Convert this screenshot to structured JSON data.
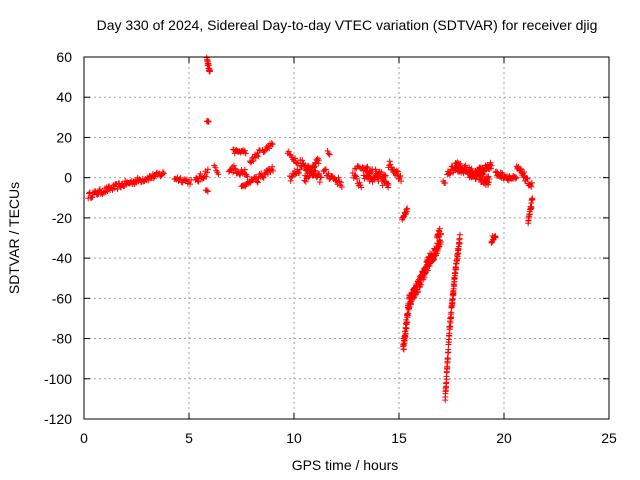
{
  "chart_data": {
    "type": "scatter",
    "title": "Day 330 of 2024, Sidereal Day-to-day VTEC variation (SDTVAR) for receiver djig",
    "xlabel": "GPS time / hours",
    "ylabel": "SDTVAR / TECUs",
    "xlim": [
      0,
      25
    ],
    "ylim": [
      -120,
      60
    ],
    "xticks": [
      0,
      5,
      10,
      15,
      20,
      25
    ],
    "yticks": [
      -120,
      -100,
      -80,
      -60,
      -40,
      -20,
      0,
      20,
      40,
      60
    ],
    "grid": true,
    "legend": "none",
    "marker": "+",
    "colors": {
      "series": "#ff0000",
      "grid": "#a0a0a0",
      "axis": "#000000"
    },
    "series": [
      {
        "name": "SDTVAR",
        "segments": [
          {
            "t0": 0.2,
            "t1": 2.0,
            "v0": -9,
            "v1": -3,
            "step": 0.04,
            "jitter": 1.5,
            "trace": "main"
          },
          {
            "t0": 2.0,
            "t1": 3.8,
            "v0": -3,
            "v1": 2,
            "step": 0.04,
            "jitter": 1.5,
            "trace": "main"
          },
          {
            "t0": 4.3,
            "t1": 5.1,
            "v0": 0,
            "v1": -2,
            "step": 0.05,
            "jitter": 1.5,
            "trace": "main"
          },
          {
            "t0": 5.3,
            "t1": 5.9,
            "v0": -2,
            "v1": 3,
            "step": 0.04,
            "jitter": 2,
            "trace": "main"
          },
          {
            "t0": 5.85,
            "t1": 6.0,
            "v0": 59,
            "v1": 52,
            "step": 0.01,
            "jitter": 1.5,
            "trace": "spike"
          },
          {
            "t0": 5.85,
            "t1": 5.95,
            "v0": 28,
            "v1": 27,
            "step": 0.03,
            "jitter": 0.8,
            "trace": "spike"
          },
          {
            "t0": 5.8,
            "t1": 5.9,
            "v0": -6,
            "v1": -7,
            "step": 0.05,
            "jitter": 0.5,
            "trace": "spike"
          },
          {
            "t0": 6.2,
            "t1": 6.4,
            "v0": 6,
            "v1": 1,
            "step": 0.05,
            "jitter": 1,
            "trace": "spike"
          },
          {
            "t0": 6.9,
            "t1": 7.8,
            "v0": 5,
            "v1": 2,
            "step": 0.04,
            "jitter": 2,
            "trace": "main"
          },
          {
            "t0": 7.1,
            "t1": 7.7,
            "v0": 13,
            "v1": 13,
            "step": 0.04,
            "jitter": 1,
            "trace": "upper"
          },
          {
            "t0": 7.5,
            "t1": 8.2,
            "v0": -5,
            "v1": 0,
            "step": 0.04,
            "jitter": 1,
            "trace": "lower"
          },
          {
            "t0": 7.9,
            "t1": 8.4,
            "v0": 8,
            "v1": 13,
            "step": 0.04,
            "jitter": 1.5,
            "trace": "upper"
          },
          {
            "t0": 8.2,
            "t1": 9.0,
            "v0": -1,
            "v1": 5,
            "step": 0.04,
            "jitter": 2,
            "trace": "main"
          },
          {
            "t0": 8.5,
            "t1": 9.0,
            "v0": 13,
            "v1": 17,
            "step": 0.04,
            "jitter": 1,
            "trace": "upper"
          },
          {
            "t0": 9.7,
            "t1": 10.2,
            "v0": 12,
            "v1": 8,
            "step": 0.05,
            "jitter": 1.5,
            "trace": "upper"
          },
          {
            "t0": 9.8,
            "t1": 10.3,
            "v0": 0,
            "v1": 4,
            "step": 0.04,
            "jitter": 2,
            "trace": "main"
          },
          {
            "t0": 10.3,
            "t1": 11.3,
            "v0": 8,
            "v1": -1,
            "step": 0.03,
            "jitter": 2,
            "trace": "main"
          },
          {
            "t0": 10.5,
            "t1": 11.2,
            "v0": -1,
            "v1": 9,
            "step": 0.03,
            "jitter": 2,
            "trace": "main"
          },
          {
            "t0": 11.6,
            "t1": 11.7,
            "v0": 13,
            "v1": 12,
            "step": 0.05,
            "jitter": 0.8,
            "trace": "upper"
          },
          {
            "t0": 11.4,
            "t1": 12.3,
            "v0": 3,
            "v1": -3,
            "step": 0.04,
            "jitter": 2,
            "trace": "main"
          },
          {
            "t0": 12.8,
            "t1": 13.2,
            "v0": 1,
            "v1": -4,
            "step": 0.04,
            "jitter": 2,
            "trace": "main"
          },
          {
            "t0": 12.9,
            "t1": 13.5,
            "v0": 5,
            "v1": 5,
            "step": 0.06,
            "jitter": 0.8,
            "trace": "upper"
          },
          {
            "t0": 13.3,
            "t1": 14.5,
            "v0": 3,
            "v1": -2,
            "step": 0.02,
            "jitter": 3.5,
            "trace": "main"
          },
          {
            "t0": 14.5,
            "t1": 15.1,
            "v0": 7,
            "v1": 0,
            "step": 0.03,
            "jitter": 2,
            "trace": "main"
          },
          {
            "t0": 15.15,
            "t1": 15.4,
            "v0": -20,
            "v1": -16,
            "step": 0.02,
            "jitter": 1,
            "trace": "dip"
          },
          {
            "t0": 15.2,
            "t1": 15.5,
            "v0": -86,
            "v1": -60,
            "step": 0.006,
            "jitter": 3,
            "trace": "dip"
          },
          {
            "t0": 15.5,
            "t1": 16.0,
            "v0": -62,
            "v1": -52,
            "step": 0.01,
            "jitter": 3,
            "trace": "dip"
          },
          {
            "t0": 16.0,
            "t1": 16.5,
            "v0": -52,
            "v1": -40,
            "step": 0.01,
            "jitter": 3,
            "trace": "dip"
          },
          {
            "t0": 16.5,
            "t1": 17.0,
            "v0": -42,
            "v1": -30,
            "step": 0.01,
            "jitter": 3,
            "trace": "dip"
          },
          {
            "t0": 16.8,
            "t1": 16.95,
            "v0": -30,
            "v1": -25,
            "step": 0.02,
            "jitter": 1,
            "trace": "dip"
          },
          {
            "t0": 17.2,
            "t1": 17.4,
            "v0": -110,
            "v1": -76,
            "step": 0.006,
            "jitter": 1.5,
            "trace": "dip2"
          },
          {
            "t0": 17.4,
            "t1": 17.7,
            "v0": -76,
            "v1": -45,
            "step": 0.006,
            "jitter": 2,
            "trace": "dip2"
          },
          {
            "t0": 17.7,
            "t1": 17.9,
            "v0": -45,
            "v1": -30,
            "step": 0.008,
            "jitter": 2,
            "trace": "dip2"
          },
          {
            "t0": 17.1,
            "t1": 17.2,
            "v0": -2,
            "v1": -3,
            "step": 0.05,
            "jitter": 0.5,
            "trace": "main"
          },
          {
            "t0": 17.3,
            "t1": 17.9,
            "v0": 2,
            "v1": 7,
            "step": 0.03,
            "jitter": 2,
            "trace": "main"
          },
          {
            "t0": 17.7,
            "t1": 19.3,
            "v0": 6,
            "v1": -2,
            "step": 0.02,
            "jitter": 2.5,
            "trace": "main"
          },
          {
            "t0": 18.4,
            "t1": 19.4,
            "v0": 1,
            "v1": 6,
            "step": 0.02,
            "jitter": 2,
            "trace": "main"
          },
          {
            "t0": 19.4,
            "t1": 19.6,
            "v0": -31,
            "v1": -29,
            "step": 0.02,
            "jitter": 1.5,
            "trace": "dip"
          },
          {
            "t0": 19.6,
            "t1": 20.6,
            "v0": 2,
            "v1": -1,
            "step": 0.03,
            "jitter": 1.5,
            "trace": "main"
          },
          {
            "t0": 20.6,
            "t1": 21.0,
            "v0": 5,
            "v1": 1,
            "step": 0.03,
            "jitter": 1.5,
            "trace": "main"
          },
          {
            "t0": 21.0,
            "t1": 21.35,
            "v0": -1,
            "v1": -4,
            "step": 0.03,
            "jitter": 1.5,
            "trace": "main"
          },
          {
            "t0": 21.15,
            "t1": 21.35,
            "v0": -22,
            "v1": -11,
            "step": 0.01,
            "jitter": 1.5,
            "trace": "dip"
          }
        ]
      }
    ]
  }
}
